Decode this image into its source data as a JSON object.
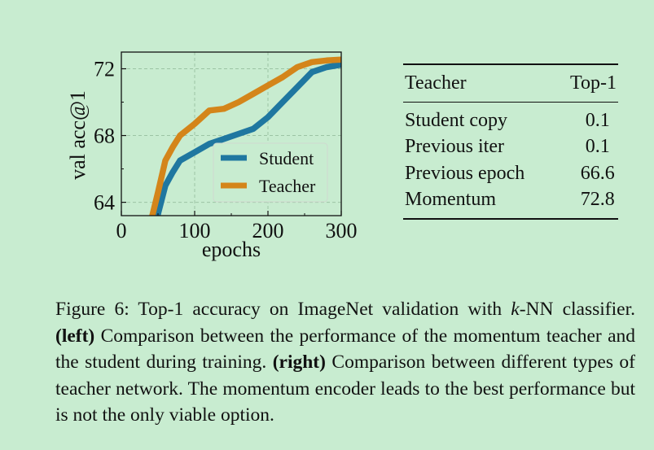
{
  "chart_data": {
    "type": "line",
    "xlabel": "epochs",
    "ylabel": "val acc@1",
    "xlim": [
      0,
      300
    ],
    "ylim": [
      63.2,
      73.0
    ],
    "xticks": [
      "0",
      "100",
      "200",
      "300"
    ],
    "yticks": [
      "64",
      "68",
      "72"
    ],
    "grid": true,
    "legend_position": "center-right",
    "series": [
      {
        "name": "Student",
        "color": "#1f77a0",
        "x": [
          40,
          45,
          50,
          60,
          70,
          80,
          100,
          120,
          140,
          160,
          180,
          200,
          220,
          240,
          260,
          280,
          300
        ],
        "y": [
          61.5,
          62.5,
          63.3,
          65.0,
          65.8,
          66.5,
          67.0,
          67.5,
          67.8,
          68.1,
          68.4,
          69.1,
          70.0,
          70.9,
          71.8,
          72.1,
          72.25
        ]
      },
      {
        "name": "Teacher",
        "color": "#d4851a",
        "x": [
          35,
          40,
          50,
          60,
          70,
          80,
          100,
          120,
          140,
          160,
          180,
          200,
          220,
          240,
          260,
          280,
          300
        ],
        "y": [
          61.7,
          62.8,
          64.6,
          66.5,
          67.3,
          68.0,
          68.7,
          69.5,
          69.6,
          70.0,
          70.5,
          71.0,
          71.5,
          72.1,
          72.4,
          72.5,
          72.55
        ]
      }
    ]
  },
  "table": {
    "headers": [
      "Teacher",
      "Top-1"
    ],
    "rows": [
      [
        "Student copy",
        "0.1"
      ],
      [
        "Previous iter",
        "0.1"
      ],
      [
        "Previous epoch",
        "66.6"
      ],
      [
        "Momentum",
        "72.8"
      ]
    ]
  },
  "caption": {
    "prefix": "Figure 6: Top-1 accuracy on ImageNet validation with ",
    "k": "k",
    "after_k": "-NN classifier. ",
    "left_label": "(left)",
    "left_text": " Comparison between the performance of the momentum teacher and the student during training. ",
    "right_label": "(right)",
    "right_text": " Comparison between different types of teacher network. The momentum encoder leads to the best performance but is not the only viable option."
  }
}
